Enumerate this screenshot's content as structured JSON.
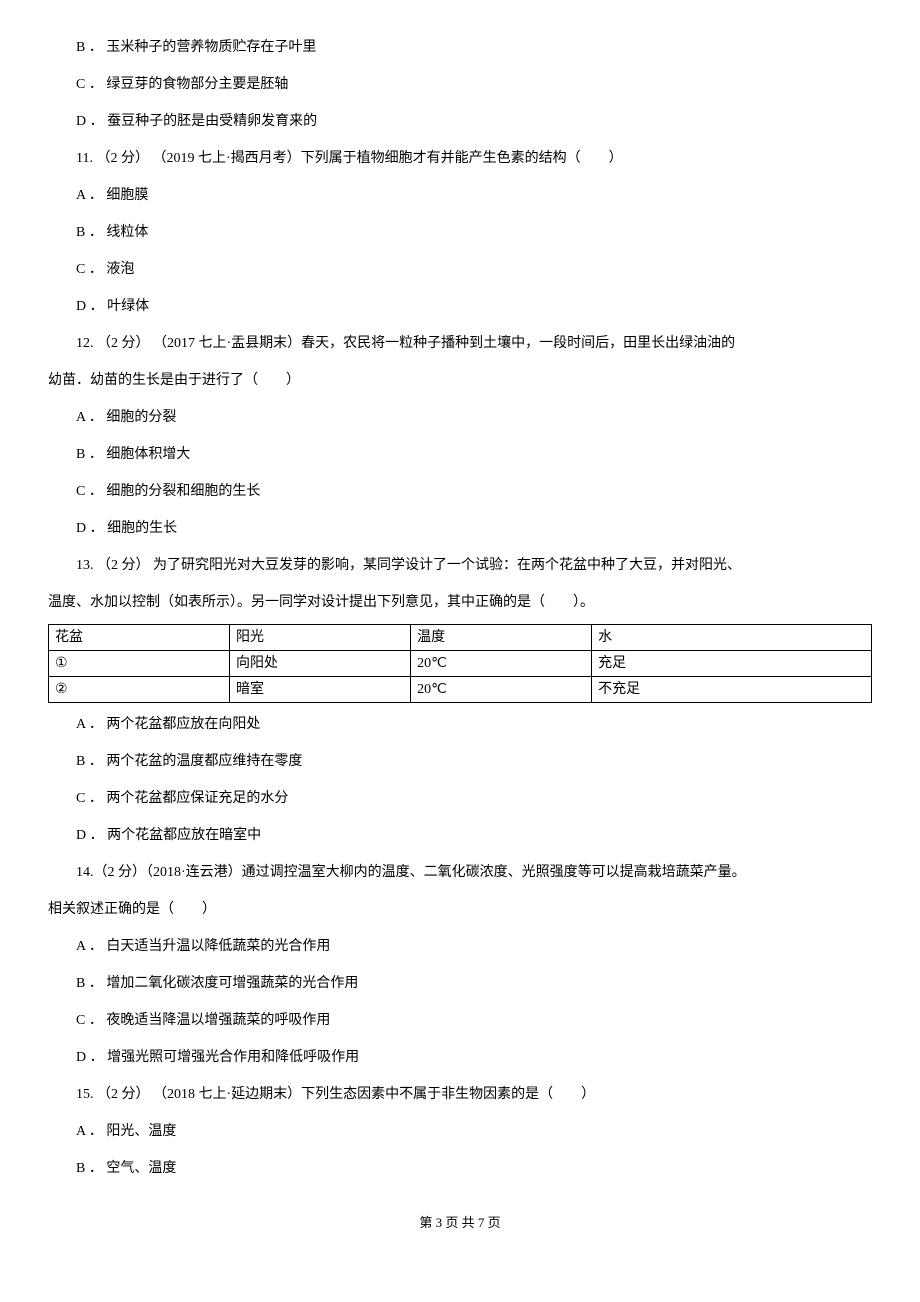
{
  "q10": {
    "options": {
      "B": "B ． 玉米种子的营养物质贮存在子叶里",
      "C": "C ． 绿豆芽的食物部分主要是胚轴",
      "D": "D ． 蚕豆种子的胚是由受精卵发育来的"
    }
  },
  "q11": {
    "stem": "11. （2 分） （2019 七上·揭西月考）下列属于植物细胞才有并能产生色素的结构（　　）",
    "options": {
      "A": "A ． 细胞膜",
      "B": "B ． 线粒体",
      "C": "C ． 液泡",
      "D": "D ． 叶绿体"
    }
  },
  "q12": {
    "stem_l1": "12. （2 分） （2017 七上·盂县期末）春天，农民将一粒种子播种到土壤中，一段时间后，田里长出绿油油的",
    "stem_l2": "幼苗．幼苗的生长是由于进行了（　　）",
    "options": {
      "A": "A ． 细胞的分裂",
      "B": "B ． 细胞体积增大",
      "C": "C ． 细胞的分裂和细胞的生长",
      "D": "D ． 细胞的生长"
    }
  },
  "q13": {
    "stem_l1": "13. （2 分）  为了研究阳光对大豆发芽的影响，某同学设计了一个试验：在两个花盆中种了大豆，并对阳光、",
    "stem_l2": "温度、水加以控制（如表所示）。另一同学对设计提出下列意见，其中正确的是（　　）。",
    "table": {
      "headers": [
        "花盆",
        "阳光",
        "温度",
        "水"
      ],
      "rows": [
        [
          "①",
          "向阳处",
          "20℃",
          "充足"
        ],
        [
          "②",
          "暗室",
          "20℃",
          "不充足"
        ]
      ]
    },
    "options": {
      "A": "A ． 两个花盆都应放在向阳处",
      "B": "B ． 两个花盆的温度都应维持在零度",
      "C": "C ． 两个花盆都应保证充足的水分",
      "D": "D ． 两个花盆都应放在暗室中"
    }
  },
  "q14": {
    "stem_l1": "14.（2 分）（2018·连云港）通过调控温室大柳内的温度、二氧化碳浓度、光照强度等可以提高栽培蔬菜产量。",
    "stem_l2": "相关叙述正确的是（　　）",
    "options": {
      "A": "A ． 白天适当升温以降低蔬菜的光合作用",
      "B": "B ． 增加二氧化碳浓度可增强蔬菜的光合作用",
      "C": "C ． 夜晚适当降温以增强蔬菜的呼吸作用",
      "D": "D ． 增强光照可增强光合作用和降低呼吸作用"
    }
  },
  "q15": {
    "stem": "15. （2 分） （2018 七上·延边期末）下列生态因素中不属于非生物因素的是（　　）",
    "options": {
      "A": "A ． 阳光、温度",
      "B": "B ． 空气、温度"
    }
  },
  "footer": "第 3 页 共 7 页"
}
